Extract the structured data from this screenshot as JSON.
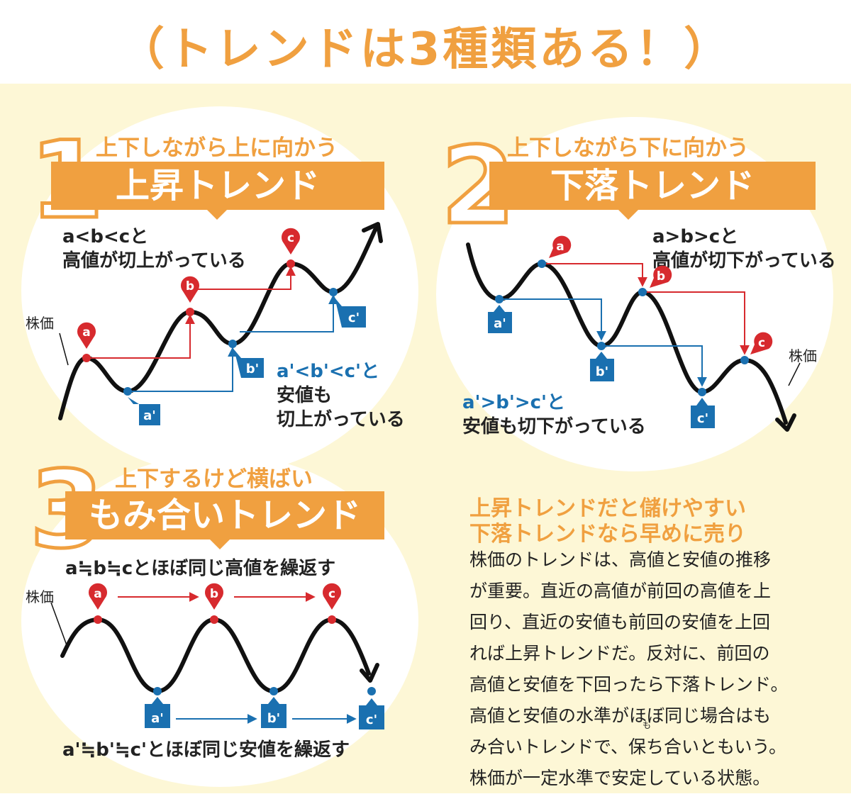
{
  "title": "（トレンドは3種類ある！）",
  "colors": {
    "orange": "#f0a040",
    "red": "#d72a2e",
    "blue": "#1a70b0",
    "bg": "#fdf7d6"
  },
  "panel1": {
    "number": "1",
    "subtitle": "上下しながら上に向かう",
    "heading": "上昇トレンド",
    "note_high_rel": "a<b<cと",
    "note_high_text": "高値が切上がっている",
    "note_low_rel": "a'<b'<c'と",
    "note_low_l1": "安値も",
    "note_low_l2": "切上がっている",
    "price_label": "株価",
    "peaks": [
      "a",
      "b",
      "c"
    ],
    "troughs": [
      "a'",
      "b'",
      "c'"
    ]
  },
  "panel2": {
    "number": "2",
    "subtitle": "上下しながら下に向かう",
    "heading": "下落トレンド",
    "note_high_rel": "a>b>cと",
    "note_high_text": "高値が切下がっている",
    "note_low_rel": "a'>b'>c'と",
    "note_low_text": "安値も切下がっている",
    "price_label": "株価",
    "peaks": [
      "a",
      "b",
      "c"
    ],
    "troughs": [
      "a'",
      "b'",
      "c'"
    ]
  },
  "panel3": {
    "number": "3",
    "subtitle": "上下するけど横ばい",
    "heading": "もみ合いトレンド",
    "note_high": "a≒b≒cとほぼ同じ高値を繰返す",
    "note_low": "a'≒b'≒c'とほぼ同じ安値を繰返す",
    "price_label": "株価",
    "peaks": [
      "a",
      "b",
      "c"
    ],
    "troughs": [
      "a'",
      "b'",
      "c'"
    ]
  },
  "sidebar": {
    "heading_l1": "上昇トレンドだと儲けやすい",
    "heading_l2": "下落トレンドなら早めに売り",
    "body": [
      "株価のトレンドは、高値と安値の推移",
      "が重要。直近の高値が前回の高値を上",
      "回り、直近の安値も前回の安値を上回",
      "れば上昇トレンドだ。反対に、前回の",
      "高値と安値を下回ったら下落トレンド。",
      "高値と安値の水準がほぼ同じ場合はも",
      "み合いトレンドで、保ち合いともいう。",
      "株価が一定水準で安定している状態。"
    ],
    "ruby": "も"
  }
}
